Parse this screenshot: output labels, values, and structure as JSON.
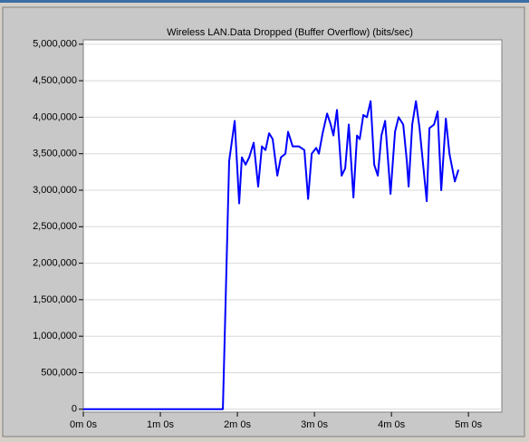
{
  "chart_data": {
    "type": "line",
    "title": "Wireless LAN.Data Dropped (Buffer Overflow) (bits/sec)",
    "color": "#0000ff",
    "x": [
      0,
      108.7,
      113.6,
      117.9,
      121.4,
      123.5,
      126.4,
      129.2,
      132.7,
      136.2,
      139.1,
      141.9,
      144.7,
      147.5,
      151.1,
      153.9,
      157.4,
      159.5,
      163.1,
      168.0,
      172.2,
      175.1,
      177.9,
      181.4,
      183.5,
      186.4,
      189.9,
      192.7,
      194.8,
      197.6,
      201.2,
      204.0,
      206.8,
      210.4,
      213.2,
      215.3,
      218.1,
      220.9,
      223.8,
      226.6,
      229.4,
      232.2,
      235.1,
      239.3,
      242.8,
      245.6,
      249.2,
      252.0,
      253.4,
      256.2,
      259.1,
      261.9,
      264.7,
      267.5,
      269.6,
      273.2,
      276.0,
      278.8,
      282.4,
      285.2,
      289.4,
      292.2
    ],
    "values": [
      0,
      0,
      3400000,
      3950000,
      2820000,
      3450000,
      3350000,
      3450000,
      3650000,
      3050000,
      3600000,
      3550000,
      3780000,
      3700000,
      3200000,
      3450000,
      3500000,
      3800000,
      3600000,
      3600000,
      3550000,
      2880000,
      3500000,
      3580000,
      3500000,
      3780000,
      4050000,
      3900000,
      3750000,
      4100000,
      3200000,
      3300000,
      3900000,
      2900000,
      3750000,
      3700000,
      4030000,
      4000000,
      4220000,
      3350000,
      3200000,
      3750000,
      3950000,
      2950000,
      3800000,
      4000000,
      3900000,
      3400000,
      3050000,
      3900000,
      4220000,
      3850000,
      3350000,
      2850000,
      3850000,
      3900000,
      4080000,
      3000000,
      3980000,
      3500000,
      3120000,
      3280000
    ],
    "xlim": [
      0,
      326
    ],
    "ylim": [
      -40000,
      5060000
    ],
    "xticks": [
      {
        "value": 0,
        "label": "0m 0s"
      },
      {
        "value": 60,
        "label": "1m 0s"
      },
      {
        "value": 120,
        "label": "2m 0s"
      },
      {
        "value": 180,
        "label": "3m 0s"
      },
      {
        "value": 240,
        "label": "4m 0s"
      },
      {
        "value": 300,
        "label": "5m 0s"
      }
    ],
    "yticks": [
      0,
      {
        "value": 500000,
        "label": "500,000"
      },
      {
        "value": 1000000,
        "label": "1,000,000"
      },
      {
        "value": 1500000,
        "label": "1,500,000"
      },
      {
        "value": 2000000,
        "label": "2,000,000"
      },
      {
        "value": 2500000,
        "label": "2,500,000"
      },
      {
        "value": 3000000,
        "label": "3,000,000"
      },
      {
        "value": 3500000,
        "label": "3,500,000"
      },
      {
        "value": 4000000,
        "label": "4,000,000"
      },
      {
        "value": 4500000,
        "label": "4,500,000"
      },
      {
        "value": 5000000,
        "label": "5,000,000"
      }
    ],
    "grid": true
  }
}
